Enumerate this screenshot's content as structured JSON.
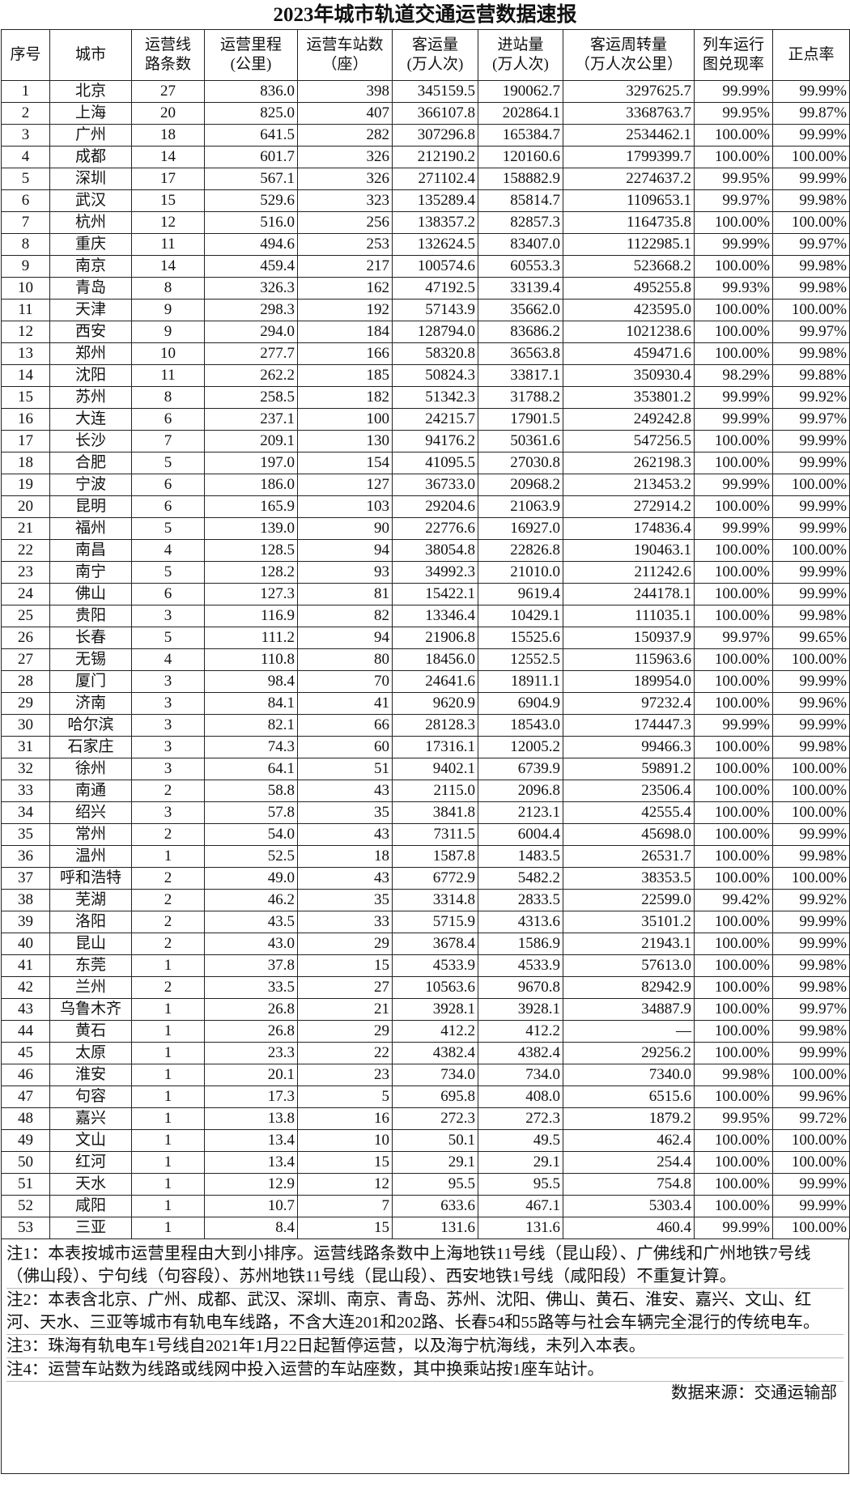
{
  "title": "2023年城市轨道交通运营数据速报",
  "table": {
    "headers": [
      [
        "序号"
      ],
      [
        "城市"
      ],
      [
        "运营线",
        "路条数"
      ],
      [
        "运营里程",
        "(公里)"
      ],
      [
        "运营车站数",
        "（座）"
      ],
      [
        "客运量",
        "(万人次)"
      ],
      [
        "进站量",
        "(万人次)"
      ],
      [
        "客运周转量",
        "（万人次公里）"
      ],
      [
        "列车运行",
        "图兑现率"
      ],
      [
        "正点率"
      ]
    ],
    "rows": [
      [
        "1",
        "北京",
        "27",
        "836.0",
        "398",
        "345159.5",
        "190062.7",
        "3297625.7",
        "99.99%",
        "99.99%"
      ],
      [
        "2",
        "上海",
        "20",
        "825.0",
        "407",
        "366107.8",
        "202864.1",
        "3368763.7",
        "99.95%",
        "99.87%"
      ],
      [
        "3",
        "广州",
        "18",
        "641.5",
        "282",
        "307296.8",
        "165384.7",
        "2534462.1",
        "100.00%",
        "99.99%"
      ],
      [
        "4",
        "成都",
        "14",
        "601.7",
        "326",
        "212190.2",
        "120160.6",
        "1799399.7",
        "100.00%",
        "100.00%"
      ],
      [
        "5",
        "深圳",
        "17",
        "567.1",
        "326",
        "271102.4",
        "158882.9",
        "2274637.2",
        "99.95%",
        "99.99%"
      ],
      [
        "6",
        "武汉",
        "15",
        "529.6",
        "323",
        "135289.4",
        "85814.7",
        "1109653.1",
        "99.97%",
        "99.98%"
      ],
      [
        "7",
        "杭州",
        "12",
        "516.0",
        "256",
        "138357.2",
        "82857.3",
        "1164735.8",
        "100.00%",
        "100.00%"
      ],
      [
        "8",
        "重庆",
        "11",
        "494.6",
        "253",
        "132624.5",
        "83407.0",
        "1122985.1",
        "99.99%",
        "99.97%"
      ],
      [
        "9",
        "南京",
        "14",
        "459.4",
        "217",
        "100574.6",
        "60553.3",
        "523668.2",
        "100.00%",
        "99.98%"
      ],
      [
        "10",
        "青岛",
        "8",
        "326.3",
        "162",
        "47192.5",
        "33139.4",
        "495255.8",
        "99.93%",
        "99.98%"
      ],
      [
        "11",
        "天津",
        "9",
        "298.3",
        "192",
        "57143.9",
        "35662.0",
        "423595.0",
        "100.00%",
        "100.00%"
      ],
      [
        "12",
        "西安",
        "9",
        "294.0",
        "184",
        "128794.0",
        "83686.2",
        "1021238.6",
        "100.00%",
        "99.97%"
      ],
      [
        "13",
        "郑州",
        "10",
        "277.7",
        "166",
        "58320.8",
        "36563.8",
        "459471.6",
        "100.00%",
        "99.98%"
      ],
      [
        "14",
        "沈阳",
        "11",
        "262.2",
        "185",
        "50824.3",
        "33817.1",
        "350930.4",
        "98.29%",
        "99.88%"
      ],
      [
        "15",
        "苏州",
        "8",
        "258.5",
        "182",
        "51342.3",
        "31788.2",
        "353801.2",
        "99.99%",
        "99.92%"
      ],
      [
        "16",
        "大连",
        "6",
        "237.1",
        "100",
        "24215.7",
        "17901.5",
        "249242.8",
        "99.99%",
        "99.97%"
      ],
      [
        "17",
        "长沙",
        "7",
        "209.1",
        "130",
        "94176.2",
        "50361.6",
        "547256.5",
        "100.00%",
        "99.99%"
      ],
      [
        "18",
        "合肥",
        "5",
        "197.0",
        "154",
        "41095.5",
        "27030.8",
        "262198.3",
        "100.00%",
        "99.99%"
      ],
      [
        "19",
        "宁波",
        "6",
        "186.0",
        "127",
        "36733.0",
        "20968.2",
        "213453.2",
        "99.99%",
        "100.00%"
      ],
      [
        "20",
        "昆明",
        "6",
        "165.9",
        "103",
        "29204.6",
        "21063.9",
        "272914.2",
        "100.00%",
        "99.99%"
      ],
      [
        "21",
        "福州",
        "5",
        "139.0",
        "90",
        "22776.6",
        "16927.0",
        "174836.4",
        "99.99%",
        "99.99%"
      ],
      [
        "22",
        "南昌",
        "4",
        "128.5",
        "94",
        "38054.8",
        "22826.8",
        "190463.1",
        "100.00%",
        "100.00%"
      ],
      [
        "23",
        "南宁",
        "5",
        "128.2",
        "93",
        "34992.3",
        "21010.0",
        "211242.6",
        "100.00%",
        "99.99%"
      ],
      [
        "24",
        "佛山",
        "6",
        "127.3",
        "81",
        "15422.1",
        "9619.4",
        "244178.1",
        "100.00%",
        "99.99%"
      ],
      [
        "25",
        "贵阳",
        "3",
        "116.9",
        "82",
        "13346.4",
        "10429.1",
        "111035.1",
        "100.00%",
        "99.98%"
      ],
      [
        "26",
        "长春",
        "5",
        "111.2",
        "94",
        "21906.8",
        "15525.6",
        "150937.9",
        "99.97%",
        "99.65%"
      ],
      [
        "27",
        "无锡",
        "4",
        "110.8",
        "80",
        "18456.0",
        "12552.5",
        "115963.6",
        "100.00%",
        "100.00%"
      ],
      [
        "28",
        "厦门",
        "3",
        "98.4",
        "70",
        "24641.6",
        "18911.1",
        "189954.0",
        "100.00%",
        "99.99%"
      ],
      [
        "29",
        "济南",
        "3",
        "84.1",
        "41",
        "9620.9",
        "6904.9",
        "97232.4",
        "100.00%",
        "99.96%"
      ],
      [
        "30",
        "哈尔滨",
        "3",
        "82.1",
        "66",
        "28128.3",
        "18543.0",
        "174447.3",
        "99.99%",
        "99.99%"
      ],
      [
        "31",
        "石家庄",
        "3",
        "74.3",
        "60",
        "17316.1",
        "12005.2",
        "99466.3",
        "100.00%",
        "99.98%"
      ],
      [
        "32",
        "徐州",
        "3",
        "64.1",
        "51",
        "9402.1",
        "6739.9",
        "59891.2",
        "100.00%",
        "100.00%"
      ],
      [
        "33",
        "南通",
        "2",
        "58.8",
        "43",
        "2115.0",
        "2096.8",
        "23506.4",
        "100.00%",
        "100.00%"
      ],
      [
        "34",
        "绍兴",
        "3",
        "57.8",
        "35",
        "3841.8",
        "2123.1",
        "42555.4",
        "100.00%",
        "100.00%"
      ],
      [
        "35",
        "常州",
        "2",
        "54.0",
        "43",
        "7311.5",
        "6004.4",
        "45698.0",
        "100.00%",
        "99.99%"
      ],
      [
        "36",
        "温州",
        "1",
        "52.5",
        "18",
        "1587.8",
        "1483.5",
        "26531.7",
        "100.00%",
        "99.98%"
      ],
      [
        "37",
        "呼和浩特",
        "2",
        "49.0",
        "43",
        "6772.9",
        "5482.2",
        "38353.5",
        "100.00%",
        "100.00%"
      ],
      [
        "38",
        "芜湖",
        "2",
        "46.2",
        "35",
        "3314.8",
        "2833.5",
        "22599.0",
        "99.42%",
        "99.92%"
      ],
      [
        "39",
        "洛阳",
        "2",
        "43.5",
        "33",
        "5715.9",
        "4313.6",
        "35101.2",
        "100.00%",
        "99.99%"
      ],
      [
        "40",
        "昆山",
        "2",
        "43.0",
        "29",
        "3678.4",
        "1586.9",
        "21943.1",
        "100.00%",
        "99.99%"
      ],
      [
        "41",
        "东莞",
        "1",
        "37.8",
        "15",
        "4533.9",
        "4533.9",
        "57613.0",
        "100.00%",
        "99.98%"
      ],
      [
        "42",
        "兰州",
        "2",
        "33.5",
        "27",
        "10563.6",
        "9670.8",
        "82942.9",
        "100.00%",
        "99.98%"
      ],
      [
        "43",
        "乌鲁木齐",
        "1",
        "26.8",
        "21",
        "3928.1",
        "3928.1",
        "34887.9",
        "100.00%",
        "99.97%"
      ],
      [
        "44",
        "黄石",
        "1",
        "26.8",
        "29",
        "412.2",
        "412.2",
        "—",
        "100.00%",
        "99.98%"
      ],
      [
        "45",
        "太原",
        "1",
        "23.3",
        "22",
        "4382.4",
        "4382.4",
        "29256.2",
        "100.00%",
        "99.99%"
      ],
      [
        "46",
        "淮安",
        "1",
        "20.1",
        "23",
        "734.0",
        "734.0",
        "7340.0",
        "99.98%",
        "100.00%"
      ],
      [
        "47",
        "句容",
        "1",
        "17.3",
        "5",
        "695.8",
        "408.0",
        "6515.6",
        "100.00%",
        "99.96%"
      ],
      [
        "48",
        "嘉兴",
        "1",
        "13.8",
        "16",
        "272.3",
        "272.3",
        "1879.2",
        "99.95%",
        "99.72%"
      ],
      [
        "49",
        "文山",
        "1",
        "13.4",
        "10",
        "50.1",
        "49.5",
        "462.4",
        "100.00%",
        "100.00%"
      ],
      [
        "50",
        "红河",
        "1",
        "13.4",
        "15",
        "29.1",
        "29.1",
        "254.4",
        "100.00%",
        "100.00%"
      ],
      [
        "51",
        "天水",
        "1",
        "12.9",
        "12",
        "95.5",
        "95.5",
        "754.8",
        "100.00%",
        "99.99%"
      ],
      [
        "52",
        "咸阳",
        "1",
        "10.7",
        "7",
        "633.6",
        "467.1",
        "5303.4",
        "100.00%",
        "99.99%"
      ],
      [
        "53",
        "三亚",
        "1",
        "8.4",
        "15",
        "131.6",
        "131.6",
        "460.4",
        "99.99%",
        "100.00%"
      ]
    ]
  },
  "notes": [
    "注1：本表按城市运营里程由大到小排序。运营线路条数中上海地铁11号线（昆山段）、广佛线和广州地铁7号线（佛山段）、宁句线（句容段）、苏州地铁11号线（昆山段）、西安地铁1号线（咸阳段）不重复计算。",
    "注2：本表含北京、广州、成都、武汉、深圳、南京、青岛、苏州、沈阳、佛山、黄石、淮安、嘉兴、文山、红河、天水、三亚等城市有轨电车线路，不含大连201和202路、长春54和55路等与社会车辆完全混行的传统电车。",
    "注3：珠海有轨电车1号线自2021年1月22日起暂停运营，以及海宁杭海线，未列入本表。",
    "注4：运营车站数为线路或线网中投入运营的车站座数，其中换乘站按1座车站计。"
  ],
  "source": "数据来源：交通运输部"
}
